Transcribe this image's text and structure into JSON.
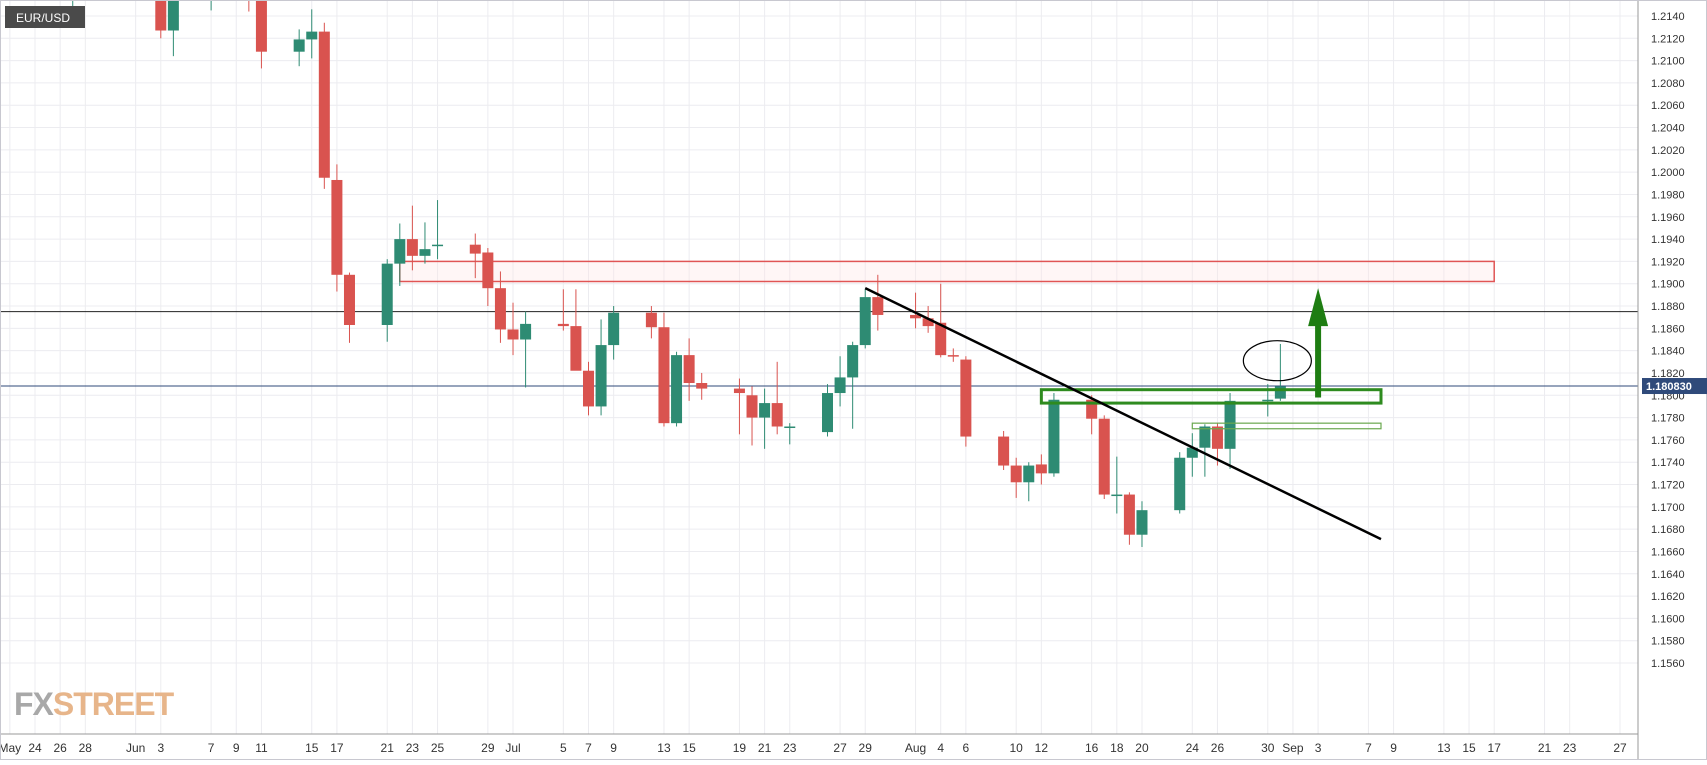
{
  "symbol": "EUR/USD",
  "logo": {
    "fx": "FX",
    "street": "STREET"
  },
  "colors": {
    "up": "#2e8b73",
    "down": "#d9534f",
    "grid": "#ececf0",
    "axis_text": "#333333",
    "price_label_bg": "#2f4a7a",
    "resistance": "#e05555",
    "support": "#2e8b1f",
    "arrow": "#1e7d12"
  },
  "chart_data": {
    "type": "candlestick",
    "y_axis": {
      "ticks": [
        "1.2140",
        "1.2120",
        "1.2100",
        "1.2080",
        "1.2060",
        "1.2040",
        "1.2020",
        "1.2000",
        "1.1980",
        "1.1960",
        "1.1940",
        "1.1920",
        "1.1900",
        "1.1880",
        "1.1860",
        "1.1840",
        "1.1820",
        "1.1800",
        "1.1780",
        "1.1760",
        "1.1740",
        "1.1720",
        "1.1700",
        "1.1680",
        "1.1660",
        "1.1640",
        "1.1620",
        "1.1600",
        "1.1580",
        "1.1560"
      ],
      "range": [
        1.1548,
        1.2154
      ]
    },
    "x_axis": {
      "ticks": [
        {
          "label": "May",
          "date": "2021-05-22"
        },
        {
          "label": "24",
          "date": "2021-05-24"
        },
        {
          "label": "26",
          "date": "2021-05-26"
        },
        {
          "label": "28",
          "date": "2021-05-28"
        },
        {
          "label": "Jun",
          "date": "2021-06-01"
        },
        {
          "label": "3",
          "date": "2021-06-03"
        },
        {
          "label": "7",
          "date": "2021-06-07"
        },
        {
          "label": "9",
          "date": "2021-06-09"
        },
        {
          "label": "11",
          "date": "2021-06-11"
        },
        {
          "label": "15",
          "date": "2021-06-15"
        },
        {
          "label": "17",
          "date": "2021-06-17"
        },
        {
          "label": "21",
          "date": "2021-06-21"
        },
        {
          "label": "23",
          "date": "2021-06-23"
        },
        {
          "label": "25",
          "date": "2021-06-25"
        },
        {
          "label": "29",
          "date": "2021-06-29"
        },
        {
          "label": "Jul",
          "date": "2021-07-01"
        },
        {
          "label": "5",
          "date": "2021-07-05"
        },
        {
          "label": "7",
          "date": "2021-07-07"
        },
        {
          "label": "9",
          "date": "2021-07-09"
        },
        {
          "label": "13",
          "date": "2021-07-13"
        },
        {
          "label": "15",
          "date": "2021-07-15"
        },
        {
          "label": "19",
          "date": "2021-07-19"
        },
        {
          "label": "21",
          "date": "2021-07-21"
        },
        {
          "label": "23",
          "date": "2021-07-23"
        },
        {
          "label": "27",
          "date": "2021-07-27"
        },
        {
          "label": "29",
          "date": "2021-07-29"
        },
        {
          "label": "Aug",
          "date": "2021-08-02"
        },
        {
          "label": "4",
          "date": "2021-08-04"
        },
        {
          "label": "6",
          "date": "2021-08-06"
        },
        {
          "label": "10",
          "date": "2021-08-10"
        },
        {
          "label": "12",
          "date": "2021-08-12"
        },
        {
          "label": "16",
          "date": "2021-08-16"
        },
        {
          "label": "18",
          "date": "2021-08-18"
        },
        {
          "label": "20",
          "date": "2021-08-20"
        },
        {
          "label": "24",
          "date": "2021-08-24"
        },
        {
          "label": "26",
          "date": "2021-08-26"
        },
        {
          "label": "30",
          "date": "2021-08-30"
        },
        {
          "label": "Sep",
          "date": "2021-09-01"
        },
        {
          "label": "3",
          "date": "2021-09-03"
        },
        {
          "label": "7",
          "date": "2021-09-07"
        },
        {
          "label": "9",
          "date": "2021-09-09"
        },
        {
          "label": "13",
          "date": "2021-09-13"
        },
        {
          "label": "15",
          "date": "2021-09-15"
        },
        {
          "label": "17",
          "date": "2021-09-17"
        },
        {
          "label": "21",
          "date": "2021-09-21"
        },
        {
          "label": "23",
          "date": "2021-09-23"
        },
        {
          "label": "27",
          "date": "2021-09-27"
        }
      ]
    },
    "current_price": {
      "label": "1.180830",
      "value": 1.18083
    },
    "horizontal_line": 1.1875,
    "candles": [
      {
        "date": "2021-05-27",
        "o": 1.2192,
        "h": 1.22,
        "l": 1.2132,
        "c": 1.2192
      },
      {
        "date": "2021-06-03",
        "o": 1.2198,
        "h": 1.2205,
        "l": 1.212,
        "c": 1.2127
      },
      {
        "date": "2021-06-04",
        "o": 1.2127,
        "h": 1.219,
        "l": 1.2104,
        "c": 1.217
      },
      {
        "date": "2021-06-07",
        "o": 1.217,
        "h": 1.2182,
        "l": 1.2145,
        "c": 1.218
      },
      {
        "date": "2021-06-10",
        "o": 1.2182,
        "h": 1.219,
        "l": 1.2144,
        "c": 1.218
      },
      {
        "date": "2021-06-11",
        "o": 1.2178,
        "h": 1.2186,
        "l": 1.2093,
        "c": 1.2108
      },
      {
        "date": "2021-06-14",
        "o": 1.2108,
        "h": 1.2128,
        "l": 1.2095,
        "c": 1.2119
      },
      {
        "date": "2021-06-15",
        "o": 1.2119,
        "h": 1.2146,
        "l": 1.2102,
        "c": 1.2126
      },
      {
        "date": "2021-06-16",
        "o": 1.2126,
        "h": 1.2134,
        "l": 1.1985,
        "c": 1.1995
      },
      {
        "date": "2021-06-17",
        "o": 1.1993,
        "h": 1.2007,
        "l": 1.1893,
        "c": 1.1908
      },
      {
        "date": "2021-06-18",
        "o": 1.1908,
        "h": 1.191,
        "l": 1.1847,
        "c": 1.1863
      },
      {
        "date": "2021-06-21",
        "o": 1.1863,
        "h": 1.1922,
        "l": 1.1848,
        "c": 1.1918
      },
      {
        "date": "2021-06-22",
        "o": 1.1918,
        "h": 1.1954,
        "l": 1.1898,
        "c": 1.194
      },
      {
        "date": "2021-06-23",
        "o": 1.194,
        "h": 1.197,
        "l": 1.1912,
        "c": 1.1925
      },
      {
        "date": "2021-06-24",
        "o": 1.1925,
        "h": 1.1955,
        "l": 1.1918,
        "c": 1.1931
      },
      {
        "date": "2021-06-25",
        "o": 1.1934,
        "h": 1.1975,
        "l": 1.1922,
        "c": 1.1935
      },
      {
        "date": "2021-06-28",
        "o": 1.1935,
        "h": 1.1945,
        "l": 1.1905,
        "c": 1.1927
      },
      {
        "date": "2021-06-29",
        "o": 1.1928,
        "h": 1.1932,
        "l": 1.188,
        "c": 1.1896
      },
      {
        "date": "2021-06-30",
        "o": 1.1896,
        "h": 1.1911,
        "l": 1.1847,
        "c": 1.1859
      },
      {
        "date": "2021-07-01",
        "o": 1.1859,
        "h": 1.1883,
        "l": 1.1836,
        "c": 1.185
      },
      {
        "date": "2021-07-02",
        "o": 1.185,
        "h": 1.1875,
        "l": 1.1807,
        "c": 1.1864
      },
      {
        "date": "2021-07-05",
        "o": 1.1864,
        "h": 1.1895,
        "l": 1.1858,
        "c": 1.1862
      },
      {
        "date": "2021-07-06",
        "o": 1.1862,
        "h": 1.1895,
        "l": 1.1823,
        "c": 1.1822
      },
      {
        "date": "2021-07-07",
        "o": 1.1822,
        "h": 1.183,
        "l": 1.1782,
        "c": 1.179
      },
      {
        "date": "2021-07-08",
        "o": 1.179,
        "h": 1.1868,
        "l": 1.1782,
        "c": 1.1845
      },
      {
        "date": "2021-07-09",
        "o": 1.1845,
        "h": 1.188,
        "l": 1.1832,
        "c": 1.1874
      },
      {
        "date": "2021-07-12",
        "o": 1.1874,
        "h": 1.188,
        "l": 1.1851,
        "c": 1.1861
      },
      {
        "date": "2021-07-13",
        "o": 1.1861,
        "h": 1.1874,
        "l": 1.1772,
        "c": 1.1775
      },
      {
        "date": "2021-07-14",
        "o": 1.1775,
        "h": 1.1839,
        "l": 1.1772,
        "c": 1.1836
      },
      {
        "date": "2021-07-15",
        "o": 1.1836,
        "h": 1.1851,
        "l": 1.1795,
        "c": 1.1811
      },
      {
        "date": "2021-07-16",
        "o": 1.1811,
        "h": 1.182,
        "l": 1.1796,
        "c": 1.1806
      },
      {
        "date": "2021-07-19",
        "o": 1.1806,
        "h": 1.1815,
        "l": 1.1765,
        "c": 1.1802
      },
      {
        "date": "2021-07-20",
        "o": 1.18,
        "h": 1.1808,
        "l": 1.1755,
        "c": 1.178
      },
      {
        "date": "2021-07-21",
        "o": 1.178,
        "h": 1.1806,
        "l": 1.1752,
        "c": 1.1793
      },
      {
        "date": "2021-07-22",
        "o": 1.1793,
        "h": 1.183,
        "l": 1.1765,
        "c": 1.1772
      },
      {
        "date": "2021-07-23",
        "o": 1.1772,
        "h": 1.1775,
        "l": 1.1756,
        "c": 1.1772
      },
      {
        "date": "2021-07-26",
        "o": 1.1767,
        "h": 1.181,
        "l": 1.1763,
        "c": 1.1802
      },
      {
        "date": "2021-07-27",
        "o": 1.1802,
        "h": 1.1835,
        "l": 1.179,
        "c": 1.1816
      },
      {
        "date": "2021-07-28",
        "o": 1.1816,
        "h": 1.1848,
        "l": 1.177,
        "c": 1.1845
      },
      {
        "date": "2021-07-29",
        "o": 1.1845,
        "h": 1.1895,
        "l": 1.1842,
        "c": 1.1888
      },
      {
        "date": "2021-07-30",
        "o": 1.1888,
        "h": 1.1908,
        "l": 1.1858,
        "c": 1.1872
      },
      {
        "date": "2021-08-02",
        "o": 1.1872,
        "h": 1.1892,
        "l": 1.186,
        "c": 1.1869
      },
      {
        "date": "2021-08-03",
        "o": 1.1869,
        "h": 1.188,
        "l": 1.1856,
        "c": 1.1862
      },
      {
        "date": "2021-08-04",
        "o": 1.1865,
        "h": 1.19,
        "l": 1.1834,
        "c": 1.1836
      },
      {
        "date": "2021-08-05",
        "o": 1.1836,
        "h": 1.1842,
        "l": 1.183,
        "c": 1.1835
      },
      {
        "date": "2021-08-06",
        "o": 1.1832,
        "h": 1.1835,
        "l": 1.1754,
        "c": 1.1763
      },
      {
        "date": "2021-08-09",
        "o": 1.1763,
        "h": 1.1768,
        "l": 1.1733,
        "c": 1.1737
      },
      {
        "date": "2021-08-10",
        "o": 1.1737,
        "h": 1.1744,
        "l": 1.1708,
        "c": 1.1722
      },
      {
        "date": "2021-08-11",
        "o": 1.1722,
        "h": 1.174,
        "l": 1.1705,
        "c": 1.1737
      },
      {
        "date": "2021-08-12",
        "o": 1.1738,
        "h": 1.1747,
        "l": 1.172,
        "c": 1.173
      },
      {
        "date": "2021-08-13",
        "o": 1.173,
        "h": 1.1802,
        "l": 1.1727,
        "c": 1.1796
      },
      {
        "date": "2021-08-16",
        "o": 1.1796,
        "h": 1.18,
        "l": 1.1765,
        "c": 1.1779
      },
      {
        "date": "2021-08-17",
        "o": 1.1779,
        "h": 1.1782,
        "l": 1.1707,
        "c": 1.1711
      },
      {
        "date": "2021-08-18",
        "o": 1.1711,
        "h": 1.1745,
        "l": 1.1694,
        "c": 1.1711
      },
      {
        "date": "2021-08-19",
        "o": 1.1711,
        "h": 1.1713,
        "l": 1.1666,
        "c": 1.1675
      },
      {
        "date": "2021-08-20",
        "o": 1.1675,
        "h": 1.1705,
        "l": 1.1664,
        "c": 1.1697
      },
      {
        "date": "2021-08-23",
        "o": 1.1697,
        "h": 1.1749,
        "l": 1.1694,
        "c": 1.1744
      },
      {
        "date": "2021-08-24",
        "o": 1.1744,
        "h": 1.1766,
        "l": 1.1727,
        "c": 1.1753
      },
      {
        "date": "2021-08-25",
        "o": 1.1753,
        "h": 1.1774,
        "l": 1.1727,
        "c": 1.1772
      },
      {
        "date": "2021-08-26",
        "o": 1.1772,
        "h": 1.1775,
        "l": 1.1737,
        "c": 1.1752
      },
      {
        "date": "2021-08-27",
        "o": 1.1752,
        "h": 1.1802,
        "l": 1.1734,
        "c": 1.1795
      },
      {
        "date": "2021-08-30",
        "o": 1.1795,
        "h": 1.181,
        "l": 1.1781,
        "c": 1.1796
      },
      {
        "date": "2021-08-31",
        "o": 1.1797,
        "h": 1.1846,
        "l": 1.1795,
        "c": 1.1808
      }
    ],
    "annotations": {
      "resistance_zone": {
        "from_date": "2021-06-22",
        "to_date": "2021-09-17",
        "top": 1.192,
        "bottom": 1.1902
      },
      "support_zone": {
        "from_date": "2021-08-12",
        "to_date": "2021-09-08",
        "top": 1.1805,
        "bottom": 1.1793
      },
      "lower_zone": {
        "from_date": "2021-08-24",
        "to_date": "2021-09-08",
        "top": 1.1775,
        "bottom": 1.177
      },
      "trendline": {
        "from_date": "2021-07-29",
        "from_price": 1.1896,
        "to_date": "2021-09-08",
        "to_price": 1.1671
      },
      "arrow": {
        "date": "2021-09-03",
        "from_price": 1.1798,
        "to_price": 1.1896
      },
      "ellipse": {
        "date": "2021-08-31",
        "price": 1.1831
      }
    }
  }
}
